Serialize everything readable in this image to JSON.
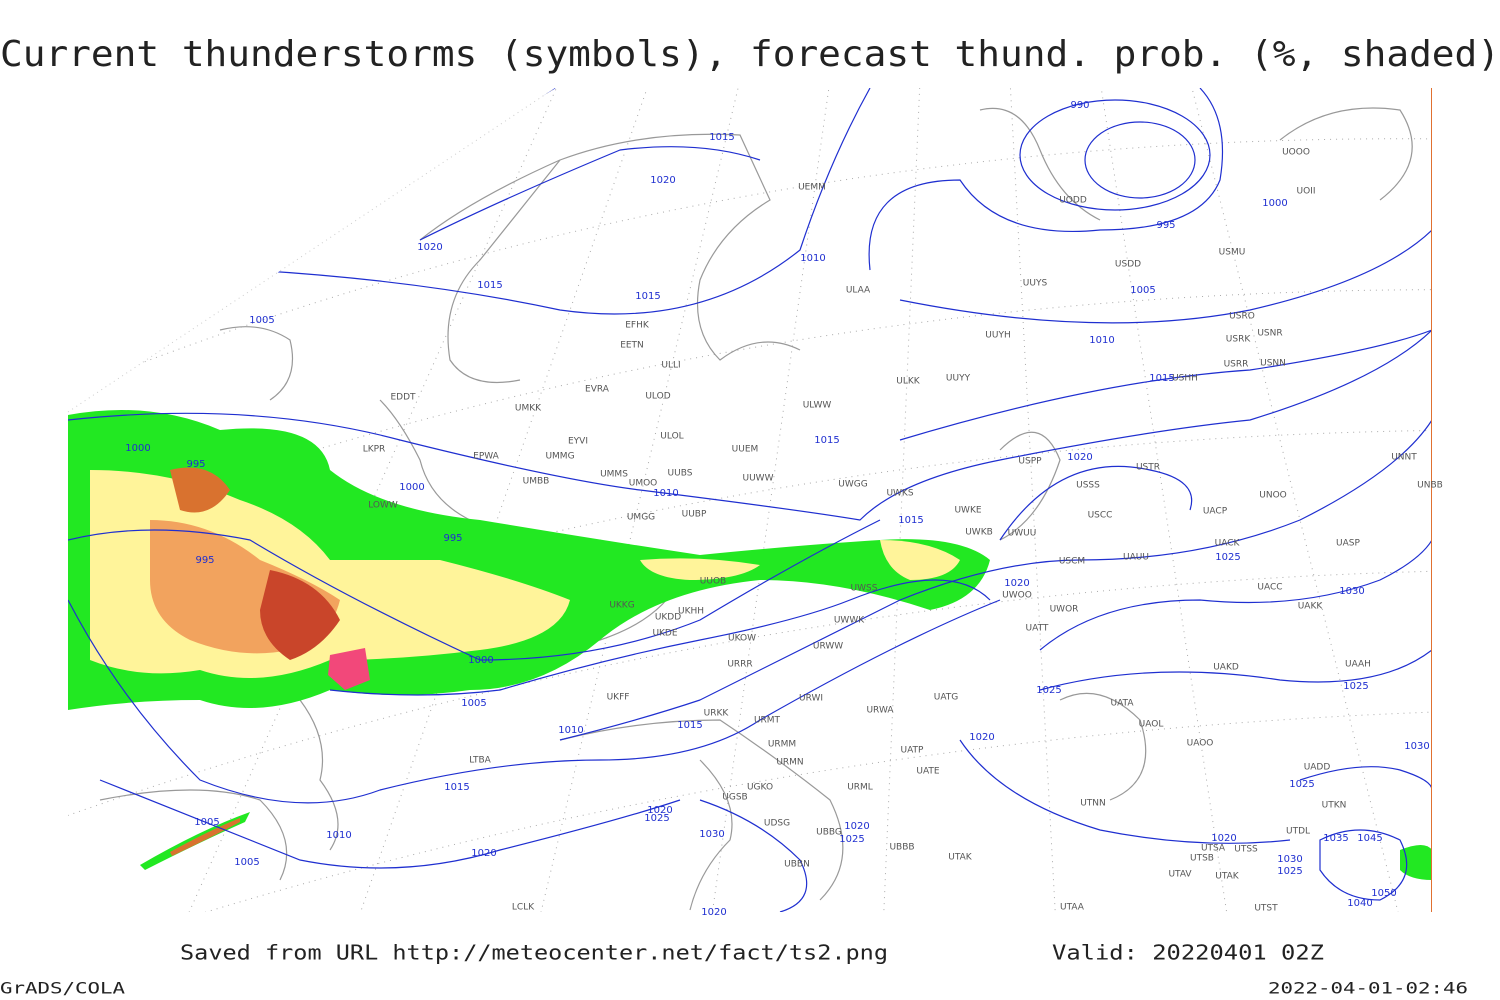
{
  "title": "Current thunderstorms (symbols), forecast thund. prob. (%, shaded)",
  "footer": {
    "saved": "Saved from URL http://meteocenter.net/fact/ts2.png",
    "valid": "Valid: 20220401 02Z",
    "software": "GrADS/COLA",
    "timestamp": "2022-04-01-02:46"
  },
  "isobar_labels": [
    990,
    1015,
    1020,
    1020,
    1010,
    995,
    1000,
    1005,
    1015,
    1015,
    1005,
    1010,
    1015,
    1015,
    1000,
    995,
    1020,
    1000,
    1010,
    1015,
    995,
    995,
    1025,
    1020,
    1030,
    1000,
    1025,
    1025,
    1005,
    1010,
    1015,
    1020,
    1030,
    1015,
    1025,
    1005,
    1020,
    1025,
    1030,
    1020,
    1025,
    1010,
    1020,
    1035,
    1045,
    1005,
    1020,
    1030,
    1025,
    1050,
    1040,
    1020
  ],
  "stations": [
    "UEMM",
    "ULAA",
    "UUYS",
    "USDD",
    "USMU",
    "UODD",
    "UOII",
    "UOOO",
    "USRO",
    "USRK",
    "USNR",
    "USRR",
    "USNN",
    "USHH",
    "UUYH",
    "UUYY",
    "ULKK",
    "ULWW",
    "UUEM",
    "UUWW",
    "UWGG",
    "UWKS",
    "UWKE",
    "UWKB",
    "UWUU",
    "USPP",
    "USTR",
    "USSS",
    "USCC",
    "UAUU",
    "USCM",
    "UWOO",
    "UWOR",
    "UATT",
    "UACK",
    "UACP",
    "UNOO",
    "UNNT",
    "UNBB",
    "UASP",
    "UACC",
    "UAKK",
    "UAKD",
    "UAAH",
    "UATA",
    "UAOL",
    "UAOO",
    "UADD",
    "UTKN",
    "UTDL",
    "UTSA",
    "UTSS",
    "UTSB",
    "UTAV",
    "UTAK",
    "UTST",
    "UTNN",
    "UTAA",
    "UTAK",
    "UATE",
    "UATP",
    "UATG",
    "URWA",
    "URWI",
    "URML",
    "UBBB",
    "UBBG",
    "URMN",
    "URMM",
    "URMT",
    "URKK",
    "URRR",
    "URWW",
    "UWWK",
    "UWSS",
    "UKHH",
    "UKDD",
    "UKDE",
    "UKFF",
    "UKOW",
    "UUOB",
    "UKKG",
    "UMGG",
    "UUBP",
    "UMBB",
    "UMOO",
    "UUBS",
    "UMMS",
    "UMMG",
    "EYVI",
    "ULOL",
    "EPWA",
    "UMKK",
    "ULOD",
    "EVRA",
    "ULLI",
    "EETN",
    "EFHK",
    "EDDT",
    "LKPR",
    "LOWW",
    "LTBA",
    "UGSB",
    "UGKO",
    "UDSG",
    "UBBN",
    "LCLK"
  ]
}
